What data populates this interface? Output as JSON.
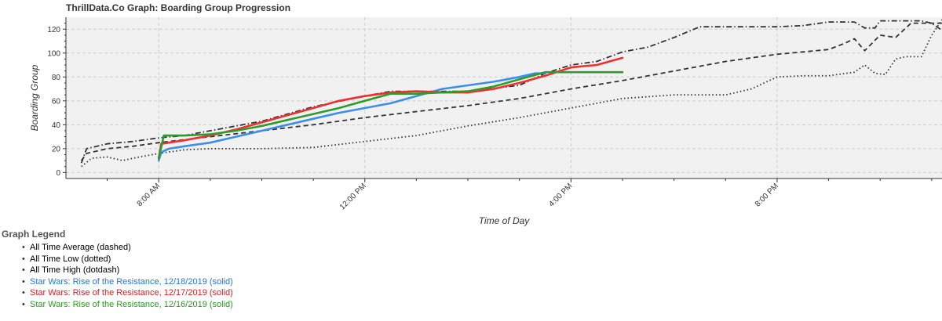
{
  "title": "ThrillData.Co Graph: Boarding Group Progression",
  "legend": {
    "title": "Graph Legend",
    "items": [
      {
        "label": "All Time Average (dashed)",
        "color": "#000000"
      },
      {
        "label": "All Time Low (dotted)",
        "color": "#000000"
      },
      {
        "label": "All Time High (dotdash)",
        "color": "#000000"
      },
      {
        "label": "Star Wars: Rise of the Resistance, 12/18/2019 (solid)",
        "color": "#1f77e4"
      },
      {
        "label": "Star Wars: Rise of the Resistance, 12/17/2019 (solid)",
        "color": "#e41a1c"
      },
      {
        "label": "Star Wars: Rise of the Resistance, 12/16/2019 (solid)",
        "color": "#2a9a1e"
      }
    ]
  },
  "chart_data": {
    "type": "line",
    "title": "ThrillData.Co Graph: Boarding Group Progression",
    "xlabel": "Time of Day",
    "ylabel": "Boarding Group",
    "xlim": [
      6.2,
      23.2
    ],
    "ylim": [
      -5,
      130
    ],
    "x_unit": "hour of day",
    "grid": true,
    "x_ticks": [
      {
        "value": 8,
        "label": "8:00 AM"
      },
      {
        "value": 12,
        "label": "12:00 PM"
      },
      {
        "value": 16,
        "label": "4:00 PM"
      },
      {
        "value": 20,
        "label": "8:00 PM"
      }
    ],
    "y_ticks": [
      0,
      20,
      40,
      60,
      80,
      100,
      120
    ],
    "series": [
      {
        "name": "All Time Average",
        "style": "dashed",
        "color": "#333333",
        "x": [
          6.5,
          6.6,
          7.0,
          7.5,
          8.0,
          9.0,
          10.0,
          11.0,
          12.0,
          13.0,
          14.0,
          15.0,
          16.0,
          17.0,
          18.0,
          19.0,
          20.0,
          20.5,
          21.0,
          21.3,
          21.5,
          21.7,
          22.0,
          22.3,
          22.6,
          23.0,
          23.2
        ],
        "y": [
          10,
          16,
          20,
          22,
          25,
          30,
          35,
          40,
          46,
          51,
          56,
          62,
          70,
          77,
          85,
          93,
          99,
          101,
          103,
          108,
          112,
          102,
          115,
          113,
          125,
          125,
          125
        ]
      },
      {
        "name": "All Time Low",
        "style": "dotted",
        "color": "#333333",
        "x": [
          6.5,
          6.7,
          7.0,
          7.3,
          7.5,
          8.0,
          8.5,
          9.0,
          10.0,
          11.0,
          12.0,
          13.0,
          14.0,
          15.0,
          16.0,
          17.0,
          18.0,
          19.0,
          19.5,
          20.0,
          20.5,
          21.0,
          21.5,
          21.7,
          21.9,
          22.1,
          22.3,
          22.5,
          22.8,
          23.0,
          23.2
        ],
        "y": [
          5,
          12,
          13,
          10,
          12,
          16,
          19,
          20,
          20,
          21,
          26,
          31,
          39,
          46,
          54,
          62,
          65,
          65,
          70,
          80,
          81,
          81,
          84,
          90,
          83,
          82,
          95,
          97,
          97,
          115,
          128
        ]
      },
      {
        "name": "All Time High",
        "style": "dotdash",
        "color": "#333333",
        "x": [
          6.5,
          6.6,
          7.0,
          7.5,
          8.0,
          8.5,
          9.0,
          10.0,
          11.0,
          12.0,
          12.5,
          13.0,
          14.0,
          15.0,
          15.5,
          16.0,
          16.5,
          17.0,
          17.5,
          18.0,
          18.5,
          19.0,
          20.0,
          20.5,
          21.0,
          21.5,
          21.7,
          21.9,
          22.0,
          22.2,
          22.5,
          22.8,
          23.0,
          23.2
        ],
        "y": [
          8,
          20,
          24,
          26,
          29,
          31,
          35,
          43,
          55,
          64,
          68,
          68,
          68,
          73,
          83,
          90,
          93,
          101,
          105,
          113,
          122,
          122,
          122,
          123,
          126,
          126,
          121,
          121,
          127,
          127,
          127,
          127,
          125,
          119
        ]
      },
      {
        "name": "Star Wars: Rise of the Resistance, 12/18/2019",
        "style": "solid",
        "color": "#3b8eea",
        "x": [
          8.0,
          8.05,
          8.2,
          8.5,
          9.0,
          9.5,
          10.0,
          10.5,
          11.0,
          11.5,
          12.0,
          12.5,
          13.0,
          13.5,
          14.0,
          14.5,
          15.0,
          15.3,
          15.5
        ],
        "y": [
          10,
          17,
          20,
          22,
          25,
          30,
          35,
          40,
          45,
          50,
          54,
          58,
          64,
          70,
          73,
          76,
          80,
          83,
          83
        ]
      },
      {
        "name": "Star Wars: Rise of the Resistance, 12/17/2019",
        "style": "solid",
        "color": "#ee3030",
        "x": [
          8.0,
          8.05,
          8.5,
          9.0,
          9.5,
          10.0,
          10.5,
          11.0,
          11.5,
          12.0,
          12.5,
          13.0,
          13.5,
          14.0,
          14.5,
          15.0,
          15.5,
          16.0,
          16.5,
          17.0
        ],
        "y": [
          12,
          24,
          27,
          31,
          36,
          42,
          48,
          54,
          60,
          64,
          67,
          68,
          67,
          67,
          70,
          75,
          81,
          88,
          90,
          96
        ]
      },
      {
        "name": "Star Wars: Rise of the Resistance, 12/16/2019",
        "style": "solid",
        "color": "#2e9b2a",
        "x": [
          8.0,
          8.1,
          8.5,
          9.0,
          9.5,
          10.0,
          10.5,
          11.0,
          11.5,
          12.0,
          12.5,
          13.0,
          13.5,
          14.0,
          14.5,
          15.0,
          15.5,
          16.0,
          16.5,
          17.0
        ],
        "y": [
          12,
          31,
          31,
          32,
          35,
          39,
          44,
          49,
          54,
          60,
          66,
          66,
          67,
          68,
          72,
          78,
          84,
          84,
          84,
          84
        ]
      }
    ]
  }
}
